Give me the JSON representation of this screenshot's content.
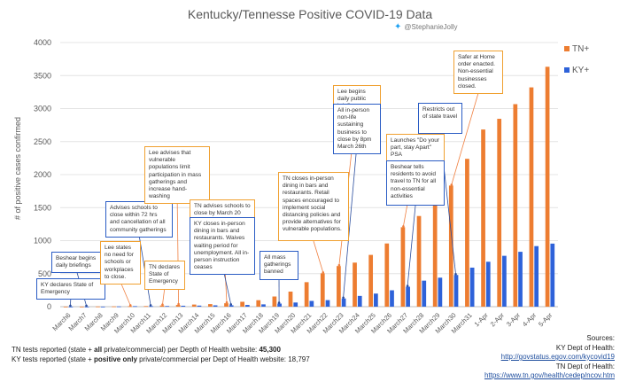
{
  "header": {
    "title": "Kentucky/Tennesse Positive COVID-19 Data",
    "handle": "@StephanieJolly",
    "handle_icon": "twitter-bird-icon"
  },
  "chart_data": {
    "type": "bar",
    "title": "Kentucky/Tennesse Positive COVID-19 Data",
    "xlabel": "",
    "ylabel": "# of positive cases confirmed",
    "ylim": [
      0,
      4000
    ],
    "yticks": [
      0,
      500,
      1000,
      1500,
      2000,
      2500,
      3000,
      3500,
      4000
    ],
    "grid": true,
    "legend_position": "right",
    "categories": [
      "March6",
      "March7",
      "March8",
      "March9",
      "March10",
      "March11",
      "March12",
      "March13",
      "March14",
      "March15",
      "March16",
      "March17",
      "March18",
      "March19",
      "March20",
      "March21",
      "March22",
      "March23",
      "March24",
      "March25",
      "March26",
      "March27",
      "March28",
      "March29",
      "March30",
      "March31",
      "1-Apr",
      "2-Apr",
      "3-Apr",
      "4-Apr",
      "5-Apr"
    ],
    "series": [
      {
        "name": "TN+",
        "color": "#ed7d31",
        "values": [
          1,
          1,
          3,
          4,
          7,
          9,
          18,
          26,
          32,
          39,
          52,
          74,
          98,
          154,
          228,
          371,
          505,
          615,
          667,
          784,
          957,
          1203,
          1373,
          1537,
          1834,
          2239,
          2683,
          2845,
          3067,
          3321,
          3633
        ]
      },
      {
        "name": "KY+",
        "color": "#2e62d9",
        "values": [
          1,
          1,
          1,
          4,
          8,
          8,
          10,
          14,
          16,
          20,
          21,
          26,
          35,
          47,
          63,
          87,
          99,
          124,
          163,
          198,
          248,
          302,
          394,
          439,
          480,
          591,
          680,
          770,
          831,
          917,
          955
        ]
      }
    ],
    "annotations": [
      {
        "text": "KY declares State of Emergency",
        "color": "blue",
        "date": "March6"
      },
      {
        "text": "Beshear  begins daily briefings",
        "color": "blue",
        "date": "March7"
      },
      {
        "text": "Lee states no need for schools or workplaces to close.",
        "color": "orange",
        "date": "March10"
      },
      {
        "text": "Advises schools to close within 72 hrs and cancellation of all community gatherings",
        "color": "blue",
        "date": "March11"
      },
      {
        "text": "TN declares State of Emergency",
        "color": "orange",
        "date": "March12"
      },
      {
        "text": "Lee advises that vulnerable populations limit participation in mass gatherings and increase hand-washing",
        "color": "orange",
        "date": "March13"
      },
      {
        "text": "TN advises schools to close by March 20",
        "color": "orange",
        "date": "March16"
      },
      {
        "text": "KY closes in-person dining in bars and restaurants. Waives waiting period for unemployment. All in-person instruction ceases",
        "color": "blue",
        "date": "March16"
      },
      {
        "text": "All mass gatherings banned",
        "color": "blue",
        "date": "March19"
      },
      {
        "text": "TN closes in-person dining in bars and restaurants.  Retail spaces encouraged to implement social distancing policies and provide alternatives for vulnerable populations.",
        "color": "orange",
        "date": "March22"
      },
      {
        "text": "Lee begins daily public briefings",
        "color": "orange",
        "date": "March23"
      },
      {
        "text": "All in-person non-life sustaining business to close by 8pm March 26th",
        "color": "blue",
        "date": "March23"
      },
      {
        "text": "Launches \"Do your part, stay Apart\" PSA",
        "color": "orange",
        "date": "March27"
      },
      {
        "text": "Beshear  tells residents to avoid travel to TN for all non-essential activities",
        "color": "blue",
        "date": "March27"
      },
      {
        "text": "Restricts out of state travel",
        "color": "blue",
        "date": "March30"
      },
      {
        "text": "Safer  at Home order enacted. Non-essential businesses closed.",
        "color": "orange",
        "date": "March30"
      }
    ]
  },
  "footer": {
    "tn_line_pre": "TN tests reported (state + ",
    "tn_line_bold": "all",
    "tn_line_mid": " private/commercial) per Depth of Health website: ",
    "tn_line_value": "45,300",
    "ky_line_pre": "KY tests reported (state + ",
    "ky_line_bold": "positive only",
    "ky_line_post": " private/commercial per Dept of Health website: 18,797"
  },
  "sources": {
    "label": "Sources:",
    "ky_label": "KY Dept of Health:",
    "ky_link": "http://govstatus.egov.com/kycovid19",
    "tn_label": "TN Dept of Health:",
    "tn_link": "https://www.tn.gov/health/cedep/ncov.htm"
  }
}
